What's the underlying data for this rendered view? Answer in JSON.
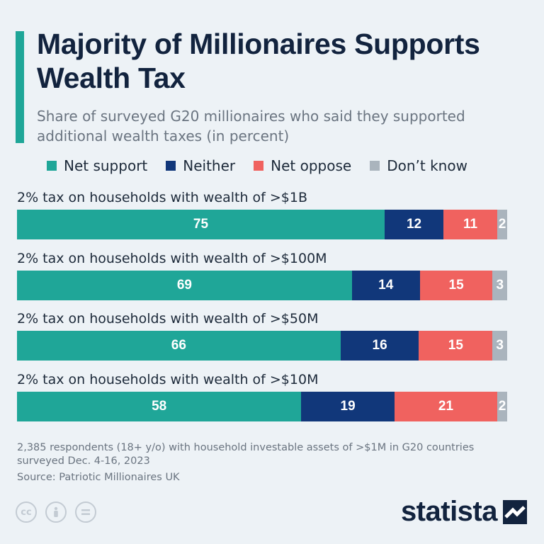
{
  "title": "Majority of Millionaires Supports Wealth Tax",
  "subtitle": "Share of surveyed G20 millionaires who said they supported additional wealth taxes (in percent)",
  "colors": {
    "net_support": "#1fa698",
    "neither": "#11377a",
    "net_oppose": "#f0625f",
    "dont_know": "#aab4bd"
  },
  "chart_data": {
    "type": "bar",
    "orientation": "horizontal",
    "stacked": true,
    "title": "Majority of Millionaires Supports Wealth Tax",
    "subtitle": "Share of surveyed G20 millionaires who said they supported additional wealth taxes (in percent)",
    "categories": [
      "2% tax on households with wealth of >$1B",
      "2% tax on households with wealth of >$100M",
      "2% tax on households with wealth of >$50M",
      "2% tax on households with wealth of >$10M"
    ],
    "series": [
      {
        "name": "Net support",
        "key": "net_support",
        "values": [
          75,
          69,
          66,
          58
        ]
      },
      {
        "name": "Neither",
        "key": "neither",
        "values": [
          12,
          14,
          16,
          19
        ]
      },
      {
        "name": "Net oppose",
        "key": "net_oppose",
        "values": [
          11,
          15,
          15,
          21
        ]
      },
      {
        "name": "Don’t know",
        "key": "dont_know",
        "values": [
          2,
          3,
          3,
          2
        ]
      }
    ],
    "xlim": [
      0,
      100
    ],
    "unit": "percent",
    "legend": "top"
  },
  "footnote": "2,385 respondents (18+ y/o) with household investable assets of >$1M in G20 countries surveyed Dec. 4-16, 2023",
  "source": "Source: Patriotic Millionaires UK",
  "license_icons": [
    "cc-icon",
    "attribution-icon",
    "no-derivatives-icon"
  ],
  "brand": "statista"
}
